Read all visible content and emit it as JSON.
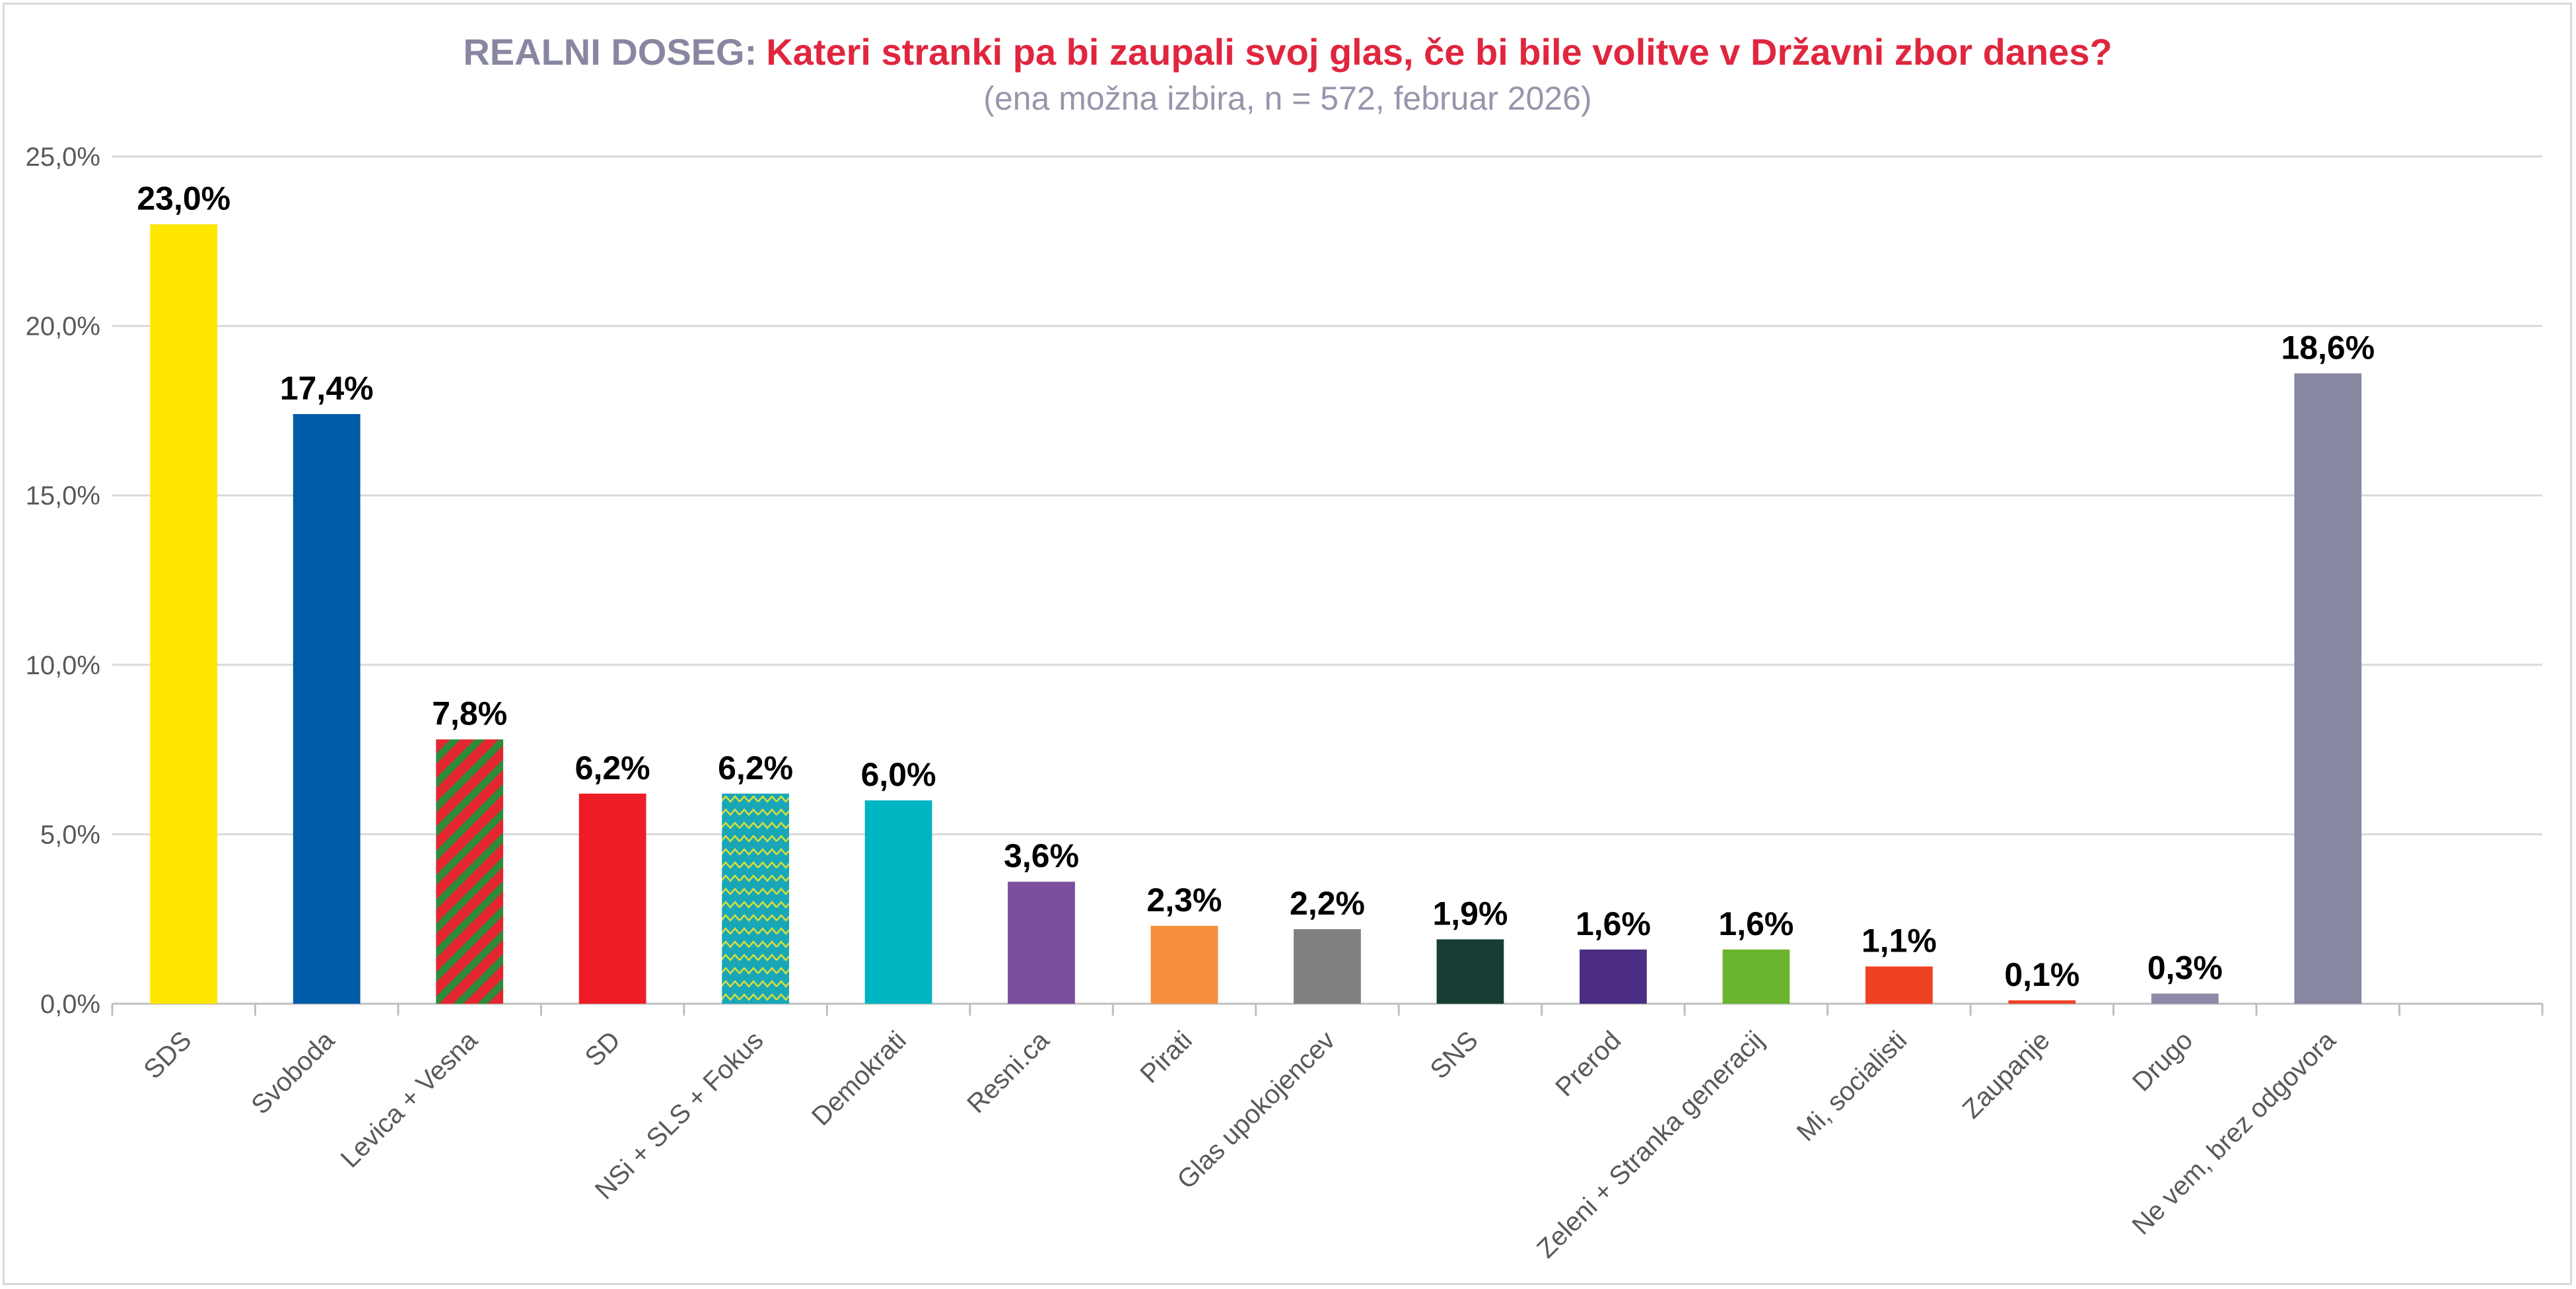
{
  "title": {
    "prefix": "REALNI DOSEG:",
    "main": "Kateri stranki pa bi zaupali svoj glas, če bi bile volitve v Državni zbor danes?",
    "subtitle": "(ena možna izbira, n = 572, februar 2026)"
  },
  "chart_data": {
    "type": "bar",
    "title": "REALNI DOSEG: Kateri stranki pa bi zaupali svoj glas, če bi bile volitve v Državni zbor danes?",
    "subtitle": "(ena možna izbira, n = 572, februar 2026)",
    "xlabel": "",
    "ylabel": "",
    "ylim": [
      0,
      25
    ],
    "yticks": [
      "0,0%",
      "5,0%",
      "10,0%",
      "15,0%",
      "20,0%",
      "25,0%"
    ],
    "grid": true,
    "legend": "none",
    "categories": [
      "SDS",
      "Svoboda",
      "Levica + Vesna",
      "SD",
      "NSi + SLS + Fokus",
      "Demokrati",
      "Resni.ca",
      "Pirati",
      "Glas upokojencev",
      "SNS",
      "Prerod",
      "Zeleni + Stranka generacij",
      "Mi, socialisti",
      "Zaupanje",
      "Drugo",
      "Ne vem, brez odgovora"
    ],
    "values": [
      23.0,
      17.4,
      7.8,
      6.2,
      6.2,
      6.0,
      3.6,
      2.3,
      2.2,
      1.9,
      1.6,
      1.6,
      1.1,
      0.1,
      0.3,
      18.6
    ],
    "labels": [
      "23,0%",
      "17,4%",
      "7,8%",
      "6,2%",
      "6,2%",
      "6,0%",
      "3,6%",
      "2,3%",
      "2,2%",
      "1,9%",
      "1,6%",
      "1,6%",
      "1,1%",
      "0,1%",
      "0,3%",
      "18,6%"
    ],
    "colors": [
      "#ffe600",
      "#005ca8",
      "#e3262f",
      "#ee1c25",
      "#19a7b8",
      "#00b5c2",
      "#7b4f9d",
      "#f7903c",
      "#808080",
      "#173e35",
      "#4b2e83",
      "#6bb42d",
      "#ef4123",
      "#ef4123",
      "#8c8aa6",
      "#8887a2"
    ],
    "patterns": [
      "none",
      "none",
      "diagonal-stripes-green",
      "none",
      "zigzag-yellow",
      "none",
      "none",
      "none",
      "none",
      "none",
      "none",
      "none",
      "none",
      "none",
      "none",
      "none"
    ]
  }
}
